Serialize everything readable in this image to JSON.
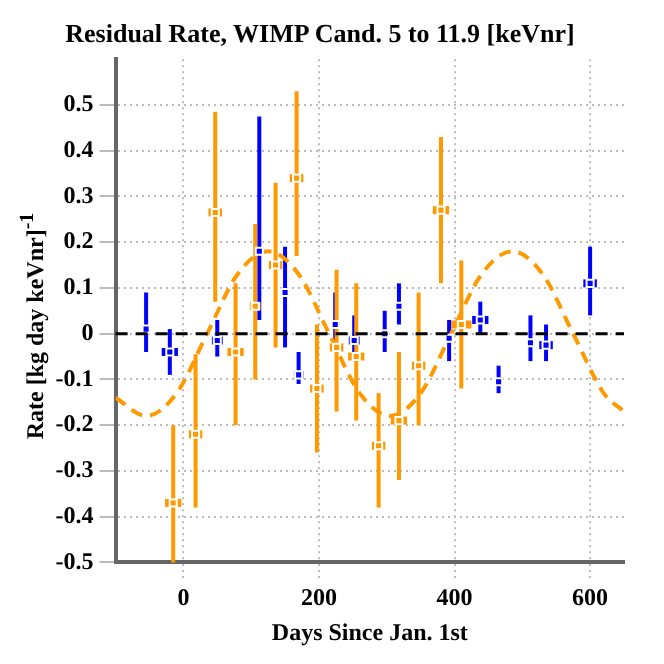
{
  "chart_data": {
    "type": "scatter",
    "title": "Residual Rate, WIMP Cand. 5 to 11.9 [keVnr]",
    "xlabel": "Days Since Jan. 1st",
    "ylabel": "Rate [kg day keVnr]$^{-1}$",
    "xlim": [
      -100,
      650
    ],
    "xticks": [
      0,
      200,
      400,
      600
    ],
    "ylim": [
      -0.5,
      0.6
    ],
    "yticks": [
      -0.5,
      -0.4,
      -0.3,
      -0.2,
      -0.1,
      0,
      0.1,
      0.2,
      0.3,
      0.4,
      0.5
    ],
    "grid": true,
    "legend": false,
    "ref_lines": [
      {
        "axis": "y",
        "value": 0,
        "color": "#000000",
        "line_style": "dashed"
      }
    ],
    "series": [
      {
        "color": "#0000ff",
        "x": [
          -55,
          -20,
          50,
          112,
          150,
          170,
          224,
          252,
          297,
          318,
          392,
          438,
          465,
          512,
          535,
          600
        ],
        "values": [
          0.01,
          -0.04,
          -0.015,
          0.18,
          0.09,
          -0.09,
          0.02,
          -0.015,
          0.0,
          0.06,
          -0.01,
          0.03,
          -0.105,
          -0.02,
          -0.025,
          0.11
        ],
        "errors": [
          [
            -0.04,
            0.09
          ],
          [
            -0.09,
            0.01
          ],
          [
            -0.05,
            0.03
          ],
          [
            0.03,
            0.475
          ],
          [
            -0.03,
            0.19
          ],
          [
            -0.11,
            -0.04
          ],
          [
            -0.04,
            0.09
          ],
          [
            -0.06,
            0.04
          ],
          [
            -0.04,
            0.05
          ],
          [
            0.02,
            0.11
          ],
          [
            -0.06,
            0.03
          ],
          [
            0.0,
            0.07
          ],
          [
            -0.13,
            -0.07
          ],
          [
            -0.06,
            0.04
          ],
          [
            -0.06,
            0.02
          ],
          [
            0.04,
            0.19
          ]
        ],
        "xerrors": [
          5,
          12,
          8,
          3,
          6,
          7,
          6,
          8,
          6,
          4,
          4,
          12,
          5,
          6,
          10,
          10
        ],
        "marker": "square"
      },
      {
        "color": "#ff9900",
        "x": [
          -15,
          18,
          47,
          77,
          106,
          136,
          167,
          197,
          226,
          255,
          288,
          318,
          347,
          380,
          410
        ],
        "values": [
          -0.37,
          -0.22,
          0.265,
          -0.04,
          0.06,
          0.15,
          0.34,
          -0.12,
          -0.03,
          -0.05,
          -0.245,
          -0.19,
          -0.07,
          0.27,
          0.02
        ],
        "errors": [
          [
            -0.5,
            -0.2
          ],
          [
            -0.38,
            -0.045
          ],
          [
            0.07,
            0.485
          ],
          [
            -0.2,
            0.11
          ],
          [
            -0.1,
            0.24
          ],
          [
            -0.03,
            0.33
          ],
          [
            0.17,
            0.53
          ],
          [
            -0.26,
            0.02
          ],
          [
            -0.17,
            0.14
          ],
          [
            -0.19,
            0.11
          ],
          [
            -0.38,
            -0.13
          ],
          [
            -0.32,
            -0.04
          ],
          [
            -0.2,
            0.09
          ],
          [
            0.11,
            0.43
          ],
          [
            -0.12,
            0.16
          ]
        ],
        "xerrors": [
          12,
          10,
          10,
          12,
          8,
          10,
          10,
          10,
          10,
          12,
          10,
          12,
          10,
          12,
          15
        ],
        "marker": "square"
      },
      {
        "type": "line",
        "color": "#ff9900",
        "line_style": "dashed",
        "marker": "none",
        "x": [
          -100,
          -55,
          -10,
          35,
          80,
          125,
          170,
          215,
          260,
          305,
          350,
          395,
          440,
          485,
          530,
          575,
          620,
          650
        ],
        "values": [
          -0.14,
          -0.18,
          -0.13,
          0.0,
          0.13,
          0.18,
          0.13,
          0.0,
          -0.13,
          -0.18,
          -0.13,
          0.0,
          0.13,
          0.18,
          0.13,
          0.0,
          -0.13,
          -0.17
        ]
      }
    ]
  }
}
